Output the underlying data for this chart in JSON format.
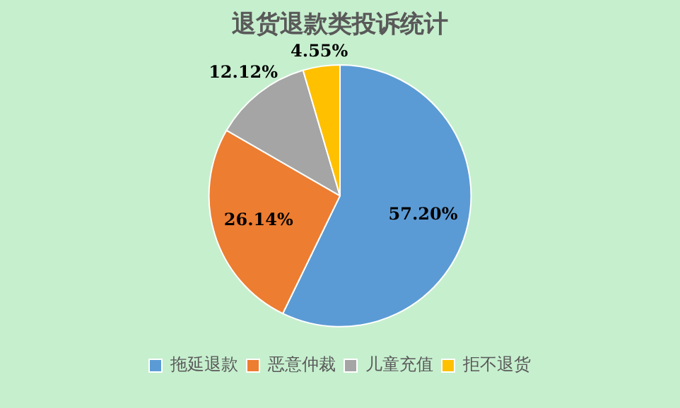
{
  "chart_data": {
    "type": "pie",
    "title": "退货退款类投诉统计",
    "categories": [
      "拖延退款",
      "恶意仲裁",
      "儿童充值",
      "拒不退货"
    ],
    "values": [
      57.2,
      26.14,
      12.12,
      4.55
    ],
    "colors": [
      "#5b9bd5",
      "#ed7d31",
      "#a5a5a5",
      "#ffc000"
    ],
    "value_labels": [
      "57.20%",
      "26.14%",
      "12.12%",
      "4.55%"
    ],
    "legend": "bottom"
  }
}
